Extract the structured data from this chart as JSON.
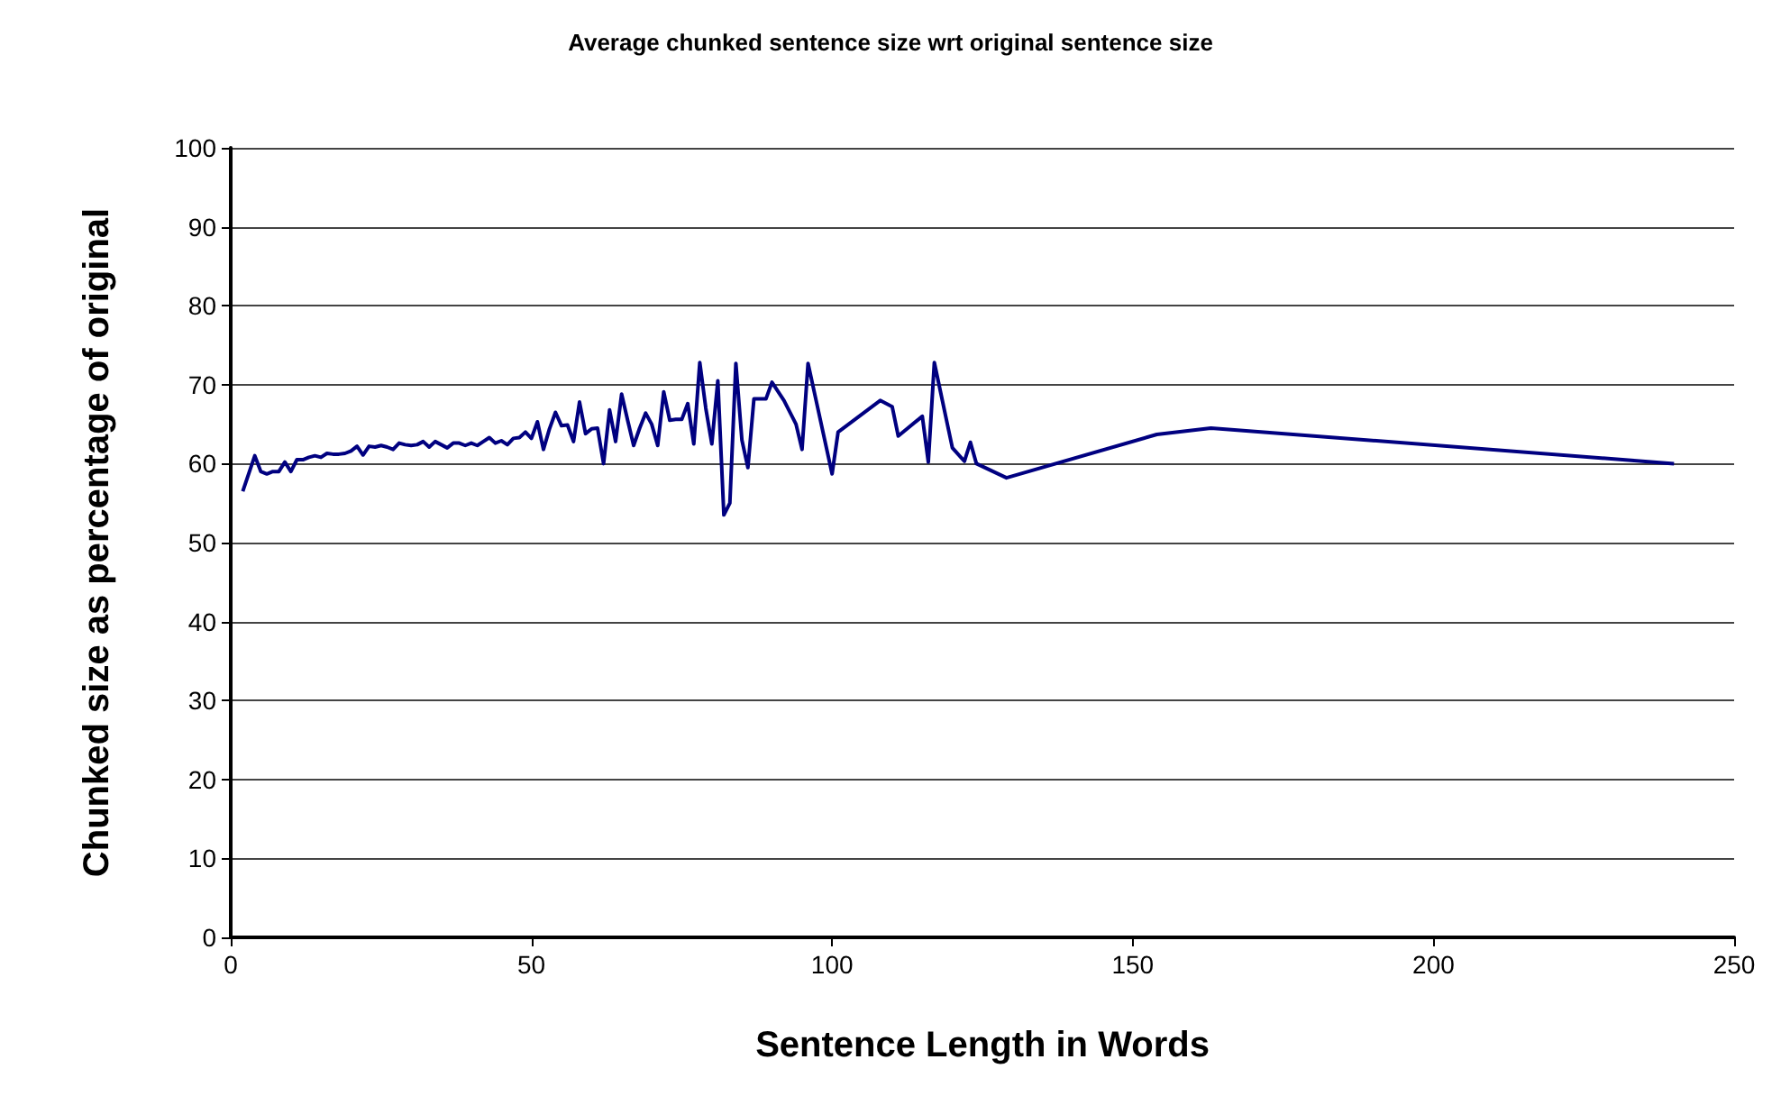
{
  "chart_data": {
    "type": "line",
    "title": "Average chunked sentence size wrt original sentence size",
    "xlabel": "Sentence Length in Words",
    "ylabel": "Chunked size as percentage of original",
    "x": [
      2,
      4,
      5,
      6,
      7,
      8,
      9,
      10,
      11,
      12,
      13,
      14,
      15,
      16,
      17,
      18,
      19,
      20,
      21,
      22,
      23,
      24,
      25,
      26,
      27,
      28,
      29,
      30,
      31,
      32,
      33,
      34,
      35,
      36,
      37,
      38,
      39,
      40,
      41,
      42,
      43,
      44,
      45,
      46,
      47,
      48,
      49,
      50,
      51,
      52,
      53,
      54,
      55,
      56,
      57,
      58,
      59,
      60,
      61,
      62,
      63,
      64,
      65,
      66,
      67,
      68,
      69,
      70,
      71,
      72,
      73,
      74,
      75,
      76,
      77,
      78,
      79,
      80,
      81,
      82,
      83,
      84,
      85,
      86,
      87,
      88,
      89,
      90,
      92,
      94,
      95,
      96,
      100,
      101,
      108,
      110,
      111,
      115,
      116,
      117,
      120,
      122,
      123,
      124,
      129,
      154,
      163,
      240
    ],
    "series": [
      {
        "color": "#000080",
        "values": [
          56.5,
          61,
          59,
          58.7,
          59,
          59,
          60.2,
          59,
          60.5,
          60.5,
          60.8,
          61,
          60.8,
          61.3,
          61.2,
          61.2,
          61.3,
          61.6,
          62.2,
          61.1,
          62.2,
          62.1,
          62.3,
          62.1,
          61.8,
          62.6,
          62.4,
          62.3,
          62.4,
          62.8,
          62.1,
          62.8,
          62.4,
          62,
          62.6,
          62.6,
          62.3,
          62.6,
          62.3,
          62.8,
          63.3,
          62.6,
          62.9,
          62.4,
          63.2,
          63.3,
          64,
          63.2,
          65.3,
          61.8,
          64.4,
          66.5,
          64.8,
          64.9,
          62.8,
          67.8,
          63.8,
          64.4,
          64.5,
          60,
          66.8,
          62.8,
          68.8,
          65.5,
          62.3,
          64.5,
          66.4,
          65,
          62.3,
          69.1,
          65.5,
          65.6,
          65.6,
          67.6,
          62.5,
          72.8,
          67,
          62.5,
          70.5,
          53.5,
          55,
          72.7,
          63,
          59.5,
          68.2,
          68.2,
          68.2,
          70.3,
          68,
          65,
          61.8,
          72.7,
          58.7,
          64,
          68,
          67.2,
          63.5,
          66,
          60.2,
          72.8,
          62,
          60.3,
          62.7,
          60,
          58.2,
          63.7,
          64.5,
          60
        ]
      }
    ],
    "xlim": [
      0,
      250
    ],
    "xticks": [
      0,
      50,
      100,
      150,
      200,
      250
    ],
    "ylim": [
      0,
      100
    ],
    "yticks": [
      0,
      10,
      20,
      30,
      40,
      50,
      60,
      70,
      80,
      90,
      100
    ],
    "grid": "y",
    "marker": "none",
    "line_style": "solid"
  }
}
